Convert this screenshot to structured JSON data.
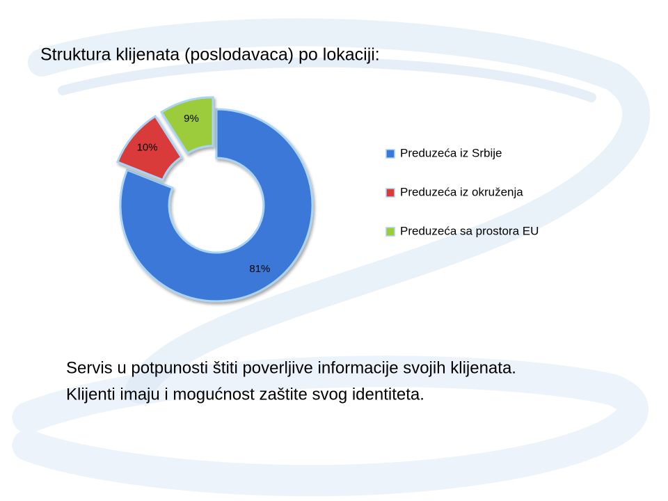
{
  "chart_data": {
    "type": "donut",
    "title": "Struktura klijenata (poslodavaca) po lokaciji:",
    "categories": [
      "Preduzeća iz Srbije",
      "Preduzeća iz okruženja",
      "Preduzeća sa prostora EU"
    ],
    "values": [
      81,
      10,
      9
    ],
    "value_labels": [
      "81%",
      "10%",
      "9%"
    ],
    "colors": [
      "#3b78d8",
      "#d93a3a",
      "#9ccc3a"
    ]
  },
  "body": [
    "Servis u potpunosti štiti poverljive informacije svojih klijenata.",
    "Klijenti imaju i mogućnost zaštite svog identiteta."
  ]
}
